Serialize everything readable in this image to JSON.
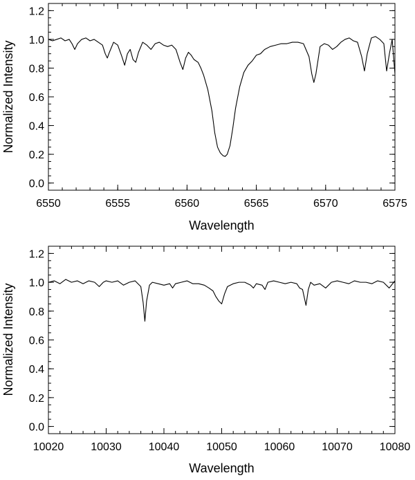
{
  "chart_data": [
    {
      "type": "line",
      "xlabel": "Wavelength",
      "ylabel": "Normalized Intensity",
      "xlim": [
        6550,
        6575
      ],
      "ylim": [
        -0.05,
        1.25
      ],
      "xticks": [
        6550,
        6555,
        6560,
        6565,
        6570,
        6575
      ],
      "xtick_labels": [
        "6550",
        "6555",
        "6560",
        "6565",
        "6570",
        "6575"
      ],
      "yticks": [
        0.0,
        0.2,
        0.4,
        0.6,
        0.8,
        1.0,
        1.2
      ],
      "ytick_labels": [
        "0.0",
        "0.2",
        "0.4",
        "0.6",
        "0.8",
        "1.0",
        "1.2"
      ],
      "grid": false,
      "series": [
        {
          "color": "#000000",
          "x": [
            6550.0,
            6550.3,
            6550.6,
            6550.9,
            6551.2,
            6551.5,
            6551.7,
            6551.9,
            6552.1,
            6552.4,
            6552.7,
            6553.0,
            6553.3,
            6553.6,
            6553.9,
            6554.1,
            6554.25,
            6554.4,
            6554.7,
            6555.0,
            6555.3,
            6555.5,
            6555.7,
            6555.9,
            6556.1,
            6556.3,
            6556.5,
            6556.8,
            6557.1,
            6557.4,
            6557.7,
            6558.0,
            6558.3,
            6558.6,
            6558.9,
            6559.2,
            6559.5,
            6559.7,
            6559.9,
            6560.1,
            6560.3,
            6560.5,
            6560.8,
            6561.0,
            6561.2,
            6561.5,
            6561.8,
            6562.0,
            6562.2,
            6562.4,
            6562.6,
            6562.75,
            6562.9,
            6563.1,
            6563.3,
            6563.5,
            6563.8,
            6564.1,
            6564.4,
            6564.7,
            6565.0,
            6565.3,
            6565.6,
            6566.0,
            6566.4,
            6566.8,
            6567.2,
            6567.6,
            6568.0,
            6568.4,
            6568.8,
            6569.0,
            6569.15,
            6569.3,
            6569.6,
            6569.9,
            6570.2,
            6570.5,
            6570.8,
            6571.1,
            6571.4,
            6571.7,
            6572.0,
            6572.3,
            6572.6,
            6572.8,
            6573.0,
            6573.3,
            6573.6,
            6573.9,
            6574.2,
            6574.4,
            6574.6,
            6574.8,
            6575.0
          ],
          "y": [
            1.0,
            0.99,
            1.0,
            1.01,
            0.99,
            1.0,
            0.97,
            0.93,
            0.97,
            1.0,
            1.01,
            0.99,
            1.0,
            0.98,
            0.96,
            0.9,
            0.87,
            0.91,
            0.98,
            0.96,
            0.88,
            0.82,
            0.9,
            0.93,
            0.86,
            0.84,
            0.91,
            0.98,
            0.96,
            0.93,
            0.97,
            0.98,
            0.96,
            0.95,
            0.96,
            0.93,
            0.84,
            0.79,
            0.87,
            0.91,
            0.89,
            0.86,
            0.84,
            0.8,
            0.75,
            0.65,
            0.5,
            0.35,
            0.25,
            0.21,
            0.19,
            0.185,
            0.2,
            0.26,
            0.38,
            0.52,
            0.67,
            0.77,
            0.82,
            0.85,
            0.89,
            0.9,
            0.93,
            0.95,
            0.96,
            0.97,
            0.97,
            0.98,
            0.98,
            0.97,
            0.88,
            0.76,
            0.7,
            0.76,
            0.95,
            0.97,
            0.96,
            0.93,
            0.95,
            0.98,
            1.0,
            1.01,
            0.99,
            0.98,
            0.88,
            0.78,
            0.9,
            1.01,
            1.02,
            1.0,
            0.97,
            0.78,
            0.9,
            1.0,
            0.76
          ]
        }
      ]
    },
    {
      "type": "line",
      "xlabel": "Wavelength",
      "ylabel": "Normalized Intensity",
      "xlim": [
        10020,
        10080
      ],
      "ylim": [
        -0.05,
        1.25
      ],
      "xticks": [
        10020,
        10030,
        10040,
        10050,
        10060,
        10070,
        10080
      ],
      "xtick_labels": [
        "10020",
        "10030",
        "10040",
        "10050",
        "10060",
        "10070",
        "10080"
      ],
      "yticks": [
        0.0,
        0.2,
        0.4,
        0.6,
        0.8,
        1.0,
        1.2
      ],
      "ytick_labels": [
        "0.0",
        "0.2",
        "0.4",
        "0.6",
        "0.8",
        "1.0",
        "1.2"
      ],
      "grid": false,
      "series": [
        {
          "color": "#000000",
          "x": [
            10020,
            10021,
            10022,
            10023,
            10024,
            10025,
            10026,
            10027,
            10028,
            10028.8,
            10029.5,
            10030,
            10031,
            10032,
            10033,
            10034,
            10035,
            10036,
            10036.4,
            10036.7,
            10037,
            10037.5,
            10038,
            10039,
            10040,
            10041,
            10041.5,
            10042,
            10043,
            10044,
            10045,
            10046,
            10047,
            10047.8,
            10048.5,
            10049,
            10049.5,
            10050,
            10050.5,
            10051,
            10052,
            10053,
            10054,
            10055,
            10055.5,
            10056,
            10057,
            10057.5,
            10058,
            10059,
            10060,
            10061,
            10062,
            10063,
            10063.5,
            10064,
            10064.6,
            10065,
            10065.4,
            10066,
            10067,
            10068,
            10069,
            10070,
            10071,
            10072,
            10073,
            10074,
            10075,
            10076,
            10077,
            10078,
            10079,
            10080
          ],
          "y": [
            1.0,
            1.01,
            0.99,
            1.02,
            1.0,
            1.01,
            0.99,
            1.01,
            1.0,
            0.97,
            1.0,
            1.01,
            1.0,
            1.01,
            0.98,
            1.0,
            1.01,
            0.97,
            0.86,
            0.73,
            0.87,
            0.98,
            1.0,
            0.99,
            0.98,
            0.99,
            0.96,
            0.99,
            1.0,
            1.01,
            0.99,
            0.99,
            0.98,
            0.96,
            0.94,
            0.9,
            0.87,
            0.85,
            0.92,
            0.97,
            0.99,
            1.0,
            1.0,
            0.98,
            0.96,
            0.99,
            0.98,
            0.95,
            1.0,
            1.01,
            1.0,
            0.99,
            1.0,
            0.99,
            0.96,
            0.95,
            0.84,
            0.95,
            1.0,
            0.98,
            0.99,
            0.96,
            1.0,
            1.01,
            1.0,
            0.99,
            1.01,
            1.0,
            1.0,
            0.99,
            1.01,
            1.0,
            0.96,
            1.01
          ]
        }
      ]
    }
  ]
}
